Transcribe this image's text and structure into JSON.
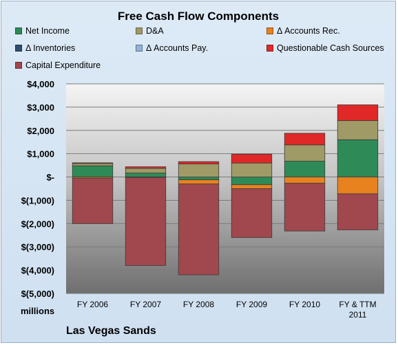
{
  "chart_data": {
    "type": "bar",
    "title": "Free Cash Flow Components",
    "categories": [
      "FY 2006",
      "FY 2007",
      "FY 2008",
      "FY 2009",
      "FY 2010",
      "FY & TTM 2011"
    ],
    "ylim": [
      -5000,
      4000
    ],
    "yticks": [
      "$4,000",
      "$3,000",
      "$2,000",
      "$1,000",
      "$-",
      "$(1,000)",
      "$(2,000)",
      "$(3,000)",
      "$(4,000)",
      "$(5,000)"
    ],
    "grid": true,
    "legend_position": "top",
    "series": [
      {
        "name": "Net Income",
        "color": "#2e8b57",
        "values": [
          480,
          170,
          -120,
          -330,
          680,
          1600
        ]
      },
      {
        "name": "D&A",
        "color": "#a09a66",
        "values": [
          100,
          200,
          560,
          600,
          700,
          820
        ]
      },
      {
        "name": "Δ Accounts Rec.",
        "color": "#e8821f",
        "values": [
          -50,
          -20,
          -180,
          -170,
          -270,
          -720
        ]
      },
      {
        "name": "Δ Inventories",
        "color": "#2f4f6f",
        "values": [
          0,
          0,
          0,
          0,
          0,
          0
        ]
      },
      {
        "name": "Δ Accounts Pay.",
        "color": "#8fb3d9",
        "values": [
          0,
          0,
          0,
          0,
          0,
          0
        ]
      },
      {
        "name": "Questionable Cash Sources",
        "color": "#e02828",
        "values": [
          30,
          70,
          100,
          380,
          500,
          680
        ]
      },
      {
        "name": "Capital Expenditure",
        "color": "#a0484d",
        "values": [
          -1950,
          -3780,
          -3900,
          -2100,
          -2050,
          -1550
        ]
      }
    ]
  },
  "units_label": "millions",
  "company": "Las Vegas Sands"
}
